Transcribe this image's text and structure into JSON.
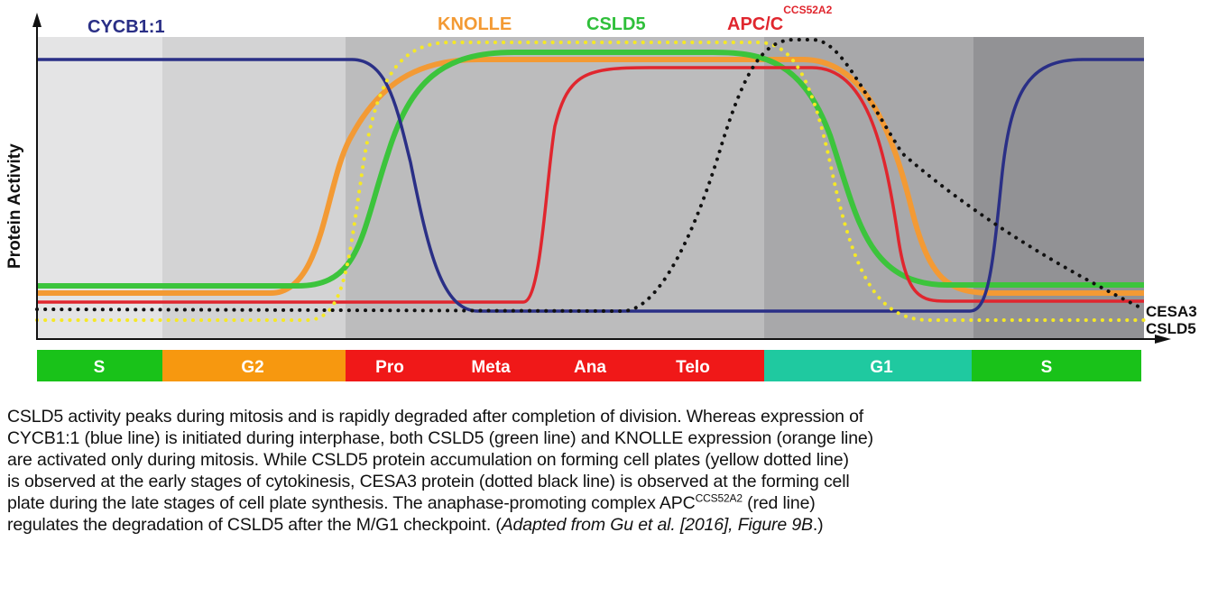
{
  "figure": {
    "y_axis_label": "Protein Activity",
    "top_labels": [
      {
        "text": "CYCB1:1",
        "color": "#2a2f86"
      },
      {
        "text": "KNOLLE",
        "color": "#f39a34"
      },
      {
        "text": "CSLD5",
        "color": "#2fbf3a"
      },
      {
        "text": "APC/C",
        "sup": "CCS52A2",
        "color": "#e0262e"
      }
    ],
    "right_labels": [
      "CESA3",
      "CSLD5"
    ],
    "phases": [
      {
        "label": "S",
        "color": "#19c219"
      },
      {
        "label": "G2",
        "color": "#f7980f"
      },
      {
        "label": "Pro",
        "color": "#f01818"
      },
      {
        "label": "Meta",
        "color": "#f01818"
      },
      {
        "label": "Ana",
        "color": "#f01818"
      },
      {
        "label": "Telo",
        "color": "#f01818"
      },
      {
        "label": "G1",
        "color": "#1fc9a0"
      },
      {
        "label": "S",
        "color": "#19c219"
      }
    ],
    "series_colors": {
      "CYCB1:1": "#2a2f86",
      "KNOLLE": "#f39a34",
      "CSLD5": "#3cc43c",
      "APC/C": "#e0262e",
      "CSLD5 cell plate": "#f5e826",
      "CESA3": "#111111"
    }
  },
  "caption": {
    "line1": "CSLD5 activity peaks during mitosis and is rapidly degraded after completion of division. Whereas expression of",
    "line2": "CYCB1:1 (blue line) is initiated during interphase, both CSLD5 (green line) and KNOLLE expression (orange line)",
    "line3": "are activated only during mitosis. While CSLD5 protein accumulation on forming cell plates (yellow dotted line)",
    "line4": "is observed at the early stages of cytokinesis, CESA3 protein (dotted black line) is observed at the forming cell",
    "line5a": "plate during the late stages of cell plate synthesis. The anaphase-promoting complex APC",
    "line5sup": "CCS52A2",
    "line5b": " (red line)",
    "line6a": "regulates the degradation of CSLD5 after the M/G1 checkpoint. (",
    "line6i": "Adapted from Gu et al. [2016], Figure 9B",
    "line6b": ".)"
  }
}
